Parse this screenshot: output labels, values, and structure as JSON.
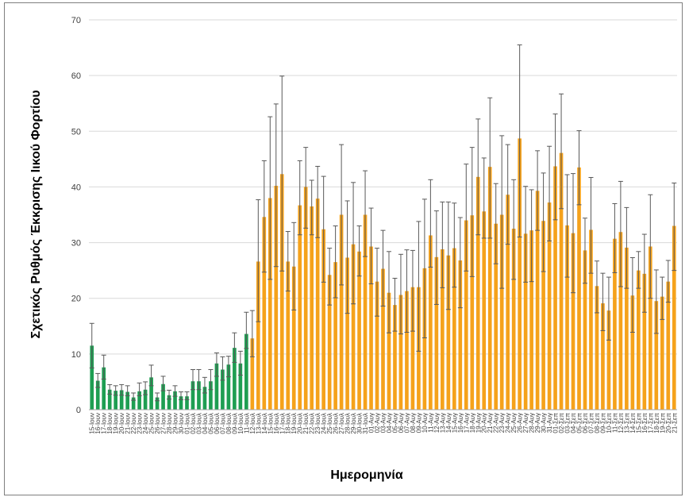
{
  "chart_data": {
    "type": "bar",
    "xlabel": "Ημερομηνία",
    "ylabel": "Σχετικός Ρυθμός Έκκρισης Ιικού Φορτίου",
    "ylim": [
      0,
      70
    ],
    "yticks": [
      0,
      10,
      20,
      30,
      40,
      50,
      60,
      70
    ],
    "grid": true,
    "colors": {
      "period1": "#1e9e52",
      "period2": "#f5a21b",
      "errorbar": "#595959",
      "grid": "#d9d9d9"
    },
    "categories": [
      "15-Ιουν",
      "16-Ιουν",
      "17-Ιουν",
      "18-Ιουν",
      "19-Ιουν",
      "20-Ιουν",
      "21-Ιουν",
      "22-Ιουν",
      "23-Ιουν",
      "24-Ιουν",
      "25-Ιουν",
      "26-Ιουν",
      "27-Ιουν",
      "28-Ιουν",
      "29-Ιουν",
      "30-Ιουν",
      "01-Ιουλ",
      "02-Ιουλ",
      "03-Ιουλ",
      "04-Ιουλ",
      "05-Ιουλ",
      "06-Ιουλ",
      "07-Ιουλ",
      "08-Ιουλ",
      "09-Ιουλ",
      "10-Ιουλ",
      "11-Ιουλ",
      "12-Ιουλ",
      "13-Ιουλ",
      "14-Ιουλ",
      "15-Ιουλ",
      "16-Ιουλ",
      "17-Ιουλ",
      "18-Ιουλ",
      "19-Ιουλ",
      "20-Ιουλ",
      "21-Ιουλ",
      "22-Ιουλ",
      "23-Ιουλ",
      "24-Ιουλ",
      "25-Ιουλ",
      "26-Ιουλ",
      "27-Ιουλ",
      "28-Ιουλ",
      "29-Ιουλ",
      "30-Ιουλ",
      "31-Ιουλ",
      "01-Αυγ",
      "02-Αυγ",
      "03-Αυγ",
      "04-Αυγ",
      "05-Αυγ",
      "06-Αυγ",
      "07-Αυγ",
      "08-Αυγ",
      "09-Αυγ",
      "10-Αυγ",
      "11-Αυγ",
      "12-Αυγ",
      "13-Αυγ",
      "14-Αυγ",
      "15-Αυγ",
      "16-Αυγ",
      "17-Αυγ",
      "18-Αυγ",
      "19-Αυγ",
      "20-Αυγ",
      "21-Αυγ",
      "22-Αυγ",
      "23-Αυγ",
      "24-Αυγ",
      "25-Αυγ",
      "26-Αυγ",
      "27-Αυγ",
      "28-Αυγ",
      "29-Αυγ",
      "30-Αυγ",
      "31-Αυγ",
      "01-Σεπ",
      "02-Σεπ",
      "03-Σεπ",
      "04-Σεπ",
      "05-Σεπ",
      "06-Σεπ",
      "07-Σεπ",
      "08-Σεπ",
      "09-Σεπ",
      "10-Σεπ",
      "11-Σεπ",
      "12-Σεπ",
      "13-Σεπ",
      "14-Σεπ",
      "15-Σεπ",
      "16-Σεπ",
      "17-Σεπ",
      "18-Σεπ",
      "19-Σεπ",
      "20-Σεπ",
      "21-Σεπ"
    ],
    "series": [
      {
        "values": [
          11.5,
          5.2,
          7.6,
          3.6,
          3.4,
          3.5,
          3.2,
          2.2,
          3.3,
          3.6,
          5.8,
          2.2,
          4.6,
          2.6,
          3.3,
          2.4,
          2.4,
          5.1,
          5.1,
          4.1,
          5.1,
          8.3,
          7.2,
          8.1,
          11.1,
          8.3,
          13.6,
          12.8,
          26.6,
          34.6,
          38.0,
          40.2,
          42.3,
          26.6,
          25.7,
          36.7,
          40.0,
          36.5,
          37.9,
          32.4,
          24.2,
          26.5,
          35.0,
          27.3,
          29.7,
          28.4,
          35.0,
          29.3,
          23.0,
          25.3,
          21.0,
          18.8,
          20.6,
          21.3,
          22.0,
          22.0,
          25.4,
          31.3,
          27.4,
          28.8,
          27.7,
          29.0,
          26.8,
          34.0,
          34.9,
          41.8,
          35.6,
          43.6,
          33.4,
          35.0,
          38.6,
          32.5,
          48.7,
          31.6,
          32.2,
          39.3,
          33.9,
          37.2,
          43.7,
          46.1,
          33.1,
          31.7,
          43.5,
          28.6,
          32.3,
          22.2,
          19.1,
          17.8,
          30.7,
          31.9,
          29.1,
          20.5,
          25.0,
          24.4,
          29.3,
          19.5,
          20.3,
          23.0,
          33.0
        ],
        "err_low": [
          7.5,
          4.0,
          5.5,
          2.8,
          2.6,
          2.6,
          2.5,
          1.7,
          2.5,
          2.7,
          4.3,
          1.6,
          3.4,
          1.9,
          2.4,
          1.8,
          1.8,
          3.6,
          3.6,
          3.0,
          3.6,
          6.0,
          5.3,
          5.9,
          8.5,
          6.2,
          11.0,
          9.5,
          15.8,
          24.7,
          23.4,
          25.7,
          24.9,
          21.3,
          17.9,
          31.4,
          32.6,
          31.4,
          30.9,
          22.9,
          18.8,
          20.1,
          22.4,
          17.3,
          19.0,
          24.0,
          27.5,
          22.6,
          16.8,
          18.6,
          13.8,
          14.1,
          13.6,
          13.9,
          14.1,
          10.5,
          12.9,
          25.6,
          18.9,
          21.9,
          18.0,
          22.0,
          18.3,
          24.9,
          23.9,
          31.4,
          30.8,
          30.8,
          26.2,
          21.8,
          29.7,
          23.4,
          31.0,
          22.9,
          23.0,
          32.2,
          24.8,
          30.3,
          34.1,
          36.1,
          23.8,
          21.0,
          36.8,
          22.7,
          24.5,
          17.4,
          14.2,
          12.5,
          24.6,
          22.1,
          21.8,
          13.9,
          21.8,
          17.5,
          20.0,
          13.7,
          16.2,
          19.3,
          25.0
        ],
        "err_high": [
          15.5,
          6.5,
          9.8,
          4.5,
          4.3,
          4.5,
          4.3,
          3.0,
          4.8,
          5.0,
          8.0,
          3.0,
          6.0,
          3.5,
          4.3,
          3.2,
          3.2,
          7.2,
          7.2,
          5.8,
          7.2,
          10.2,
          9.5,
          9.6,
          13.8,
          10.5,
          17.5,
          17.8,
          37.7,
          44.7,
          52.6,
          54.9,
          59.9,
          32.0,
          33.6,
          44.7,
          47.1,
          41.2,
          43.7,
          41.9,
          29.0,
          33.0,
          47.6,
          37.5,
          40.8,
          33.0,
          42.9,
          36.2,
          29.0,
          32.2,
          28.4,
          23.6,
          27.9,
          28.7,
          28.6,
          33.8,
          37.8,
          41.3,
          35.7,
          37.3,
          37.3,
          37.1,
          34.5,
          44.1,
          47.1,
          52.2,
          45.2,
          56.0,
          40.6,
          49.2,
          47.6,
          41.3,
          65.5,
          40.1,
          39.5,
          46.5,
          42.5,
          47.3,
          53.1,
          56.7,
          42.2,
          42.4,
          50.1,
          34.4,
          41.7,
          26.7,
          24.5,
          23.8,
          37.0,
          41.0,
          36.3,
          27.3,
          28.4,
          31.5,
          38.6,
          25.1,
          23.8,
          26.8,
          40.7
        ]
      }
    ],
    "period1_count": 27
  }
}
